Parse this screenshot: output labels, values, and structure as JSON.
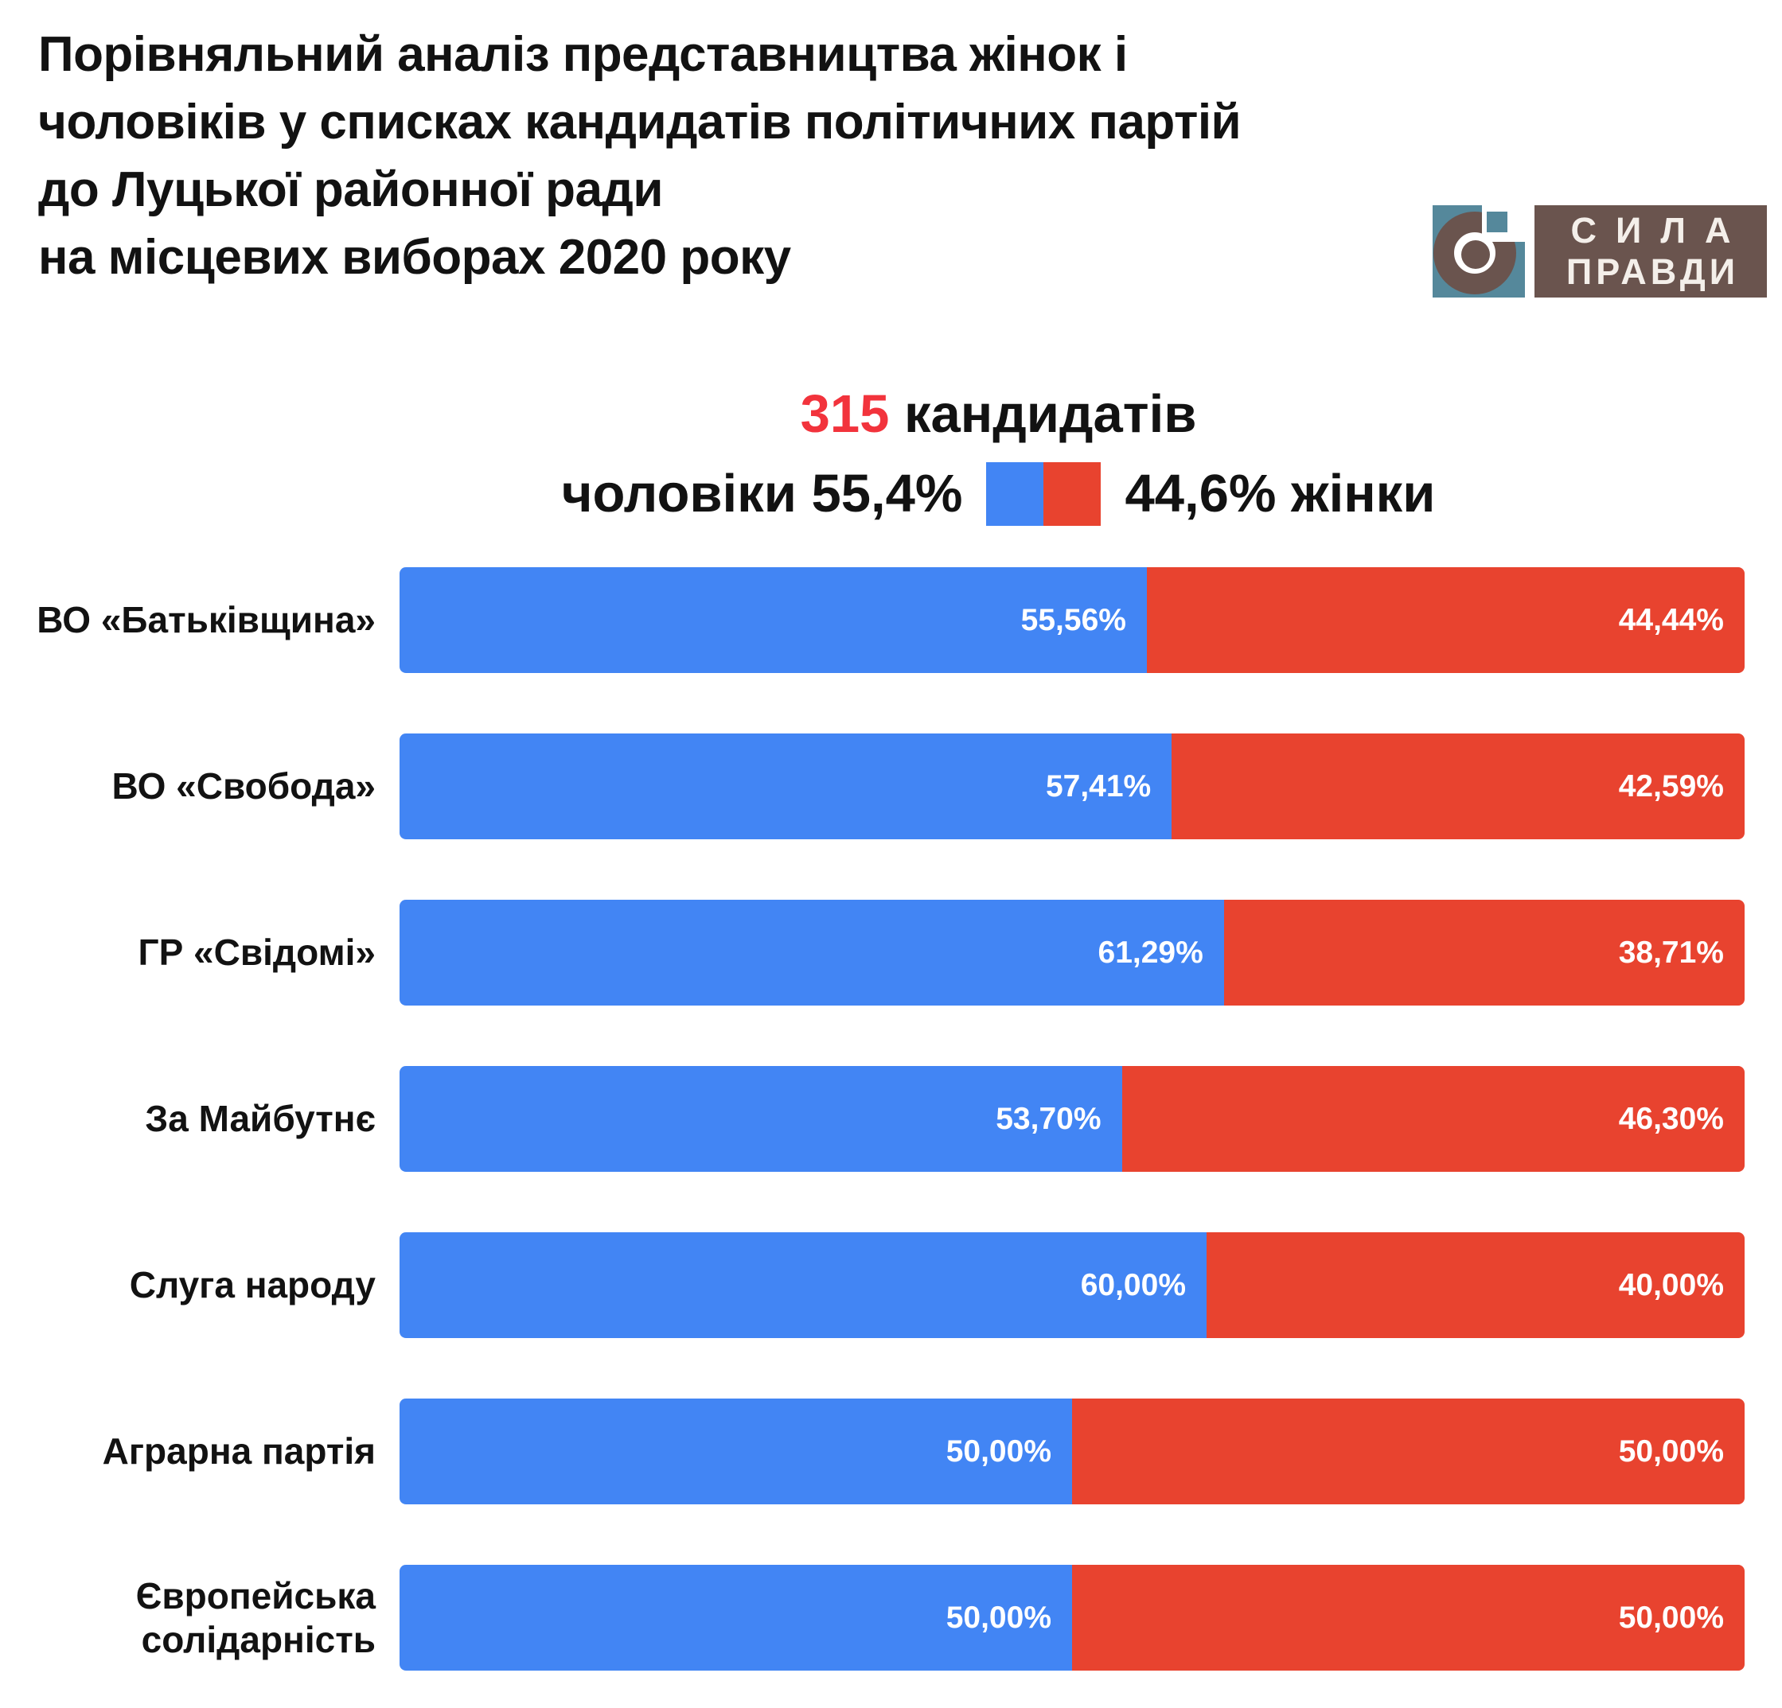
{
  "header": {
    "title_lines": [
      "Порівняльний аналіз представництва жінок і",
      "чоловіків у списках кандидатів політичних партій",
      "до Луцької районної ради",
      "на місцевих виборах 2020 року"
    ]
  },
  "logo": {
    "line1": "СИЛА",
    "line2": "ПРАВДИ"
  },
  "icons": {
    "logo_mark": "ring-with-dot-in-teal-square"
  },
  "stats": {
    "total_number": "315",
    "total_label": "кандидатів",
    "men_label": "чоловіки 55,4%",
    "women_label": "44,6% жінки"
  },
  "colors": {
    "men_blue": "#4285F4",
    "women_red": "#E8432F",
    "number_red": "#F2333C",
    "logo_teal": "#55889B",
    "logo_brown": "#6A544E",
    "text": "#121212",
    "background": "#ffffff"
  },
  "chart_data": {
    "type": "bar",
    "orientation": "horizontal",
    "stacked": true,
    "unit": "%",
    "xlim": [
      0,
      100
    ],
    "grid": false,
    "legend_position": "top-center",
    "title": "315 кандидатів",
    "categories": [
      "ВО «Батьківщина»",
      "ВО «Свобода»",
      "ГР «Свідомі»",
      "За Майбутнє",
      "Слуга народу",
      "Аграрна партія",
      "Європейська\nсолідарність"
    ],
    "series": [
      {
        "name": "чоловіки",
        "color": "#4285F4",
        "values": [
          55.56,
          57.41,
          61.29,
          53.7,
          60.0,
          50.0,
          50.0
        ],
        "labels": [
          "55,56%",
          "57,41%",
          "61,29%",
          "53,70%",
          "60,00%",
          "50,00%",
          "50,00%"
        ]
      },
      {
        "name": "жінки",
        "color": "#E8432F",
        "values": [
          44.44,
          42.59,
          38.71,
          46.3,
          40.0,
          50.0,
          50.0
        ],
        "labels": [
          "44,44%",
          "42,59%",
          "38,71%",
          "46,30%",
          "40,00%",
          "50,00%",
          "50,00%"
        ]
      }
    ]
  }
}
